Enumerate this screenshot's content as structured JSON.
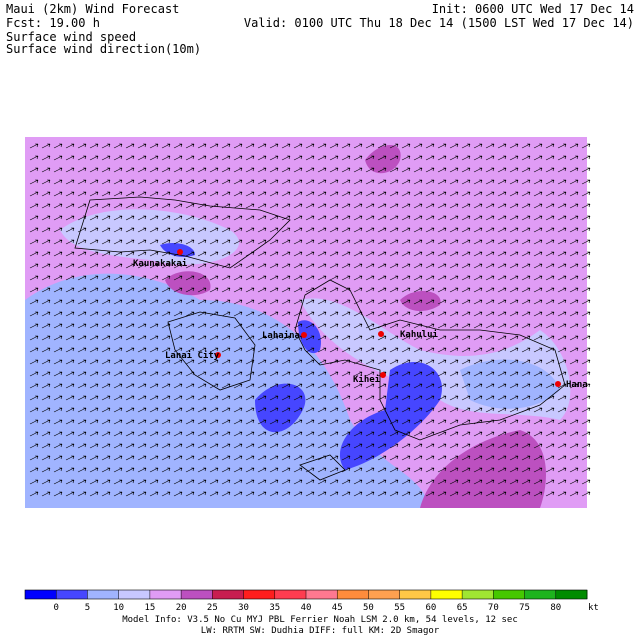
{
  "header": {
    "title": "Maui (2km) Wind Forecast",
    "fcst": "Fcst:   19.00 h",
    "line3": "Surface wind speed",
    "line4": "Surface wind direction(10m)",
    "init": "Init: 0600 UTC Wed 17 Dec 14",
    "valid": "Valid: 0100 UTC Thu 18 Dec 14 (1500 LST Wed 17 Dec 14)"
  },
  "places": [
    "Kaunakakai",
    "Lanai City",
    "Lahaina",
    "Kahului",
    "Kihei",
    "Hana"
  ],
  "colorbar": {
    "colors": [
      "#0000ff",
      "#4646ff",
      "#a0b4ff",
      "#c8c8ff",
      "#e09cf5",
      "#bc50c0",
      "#c81e50",
      "#ff1e1e",
      "#ff3c50",
      "#ff7890",
      "#ff8c3c",
      "#ffa050",
      "#ffc846",
      "#ffff00",
      "#a0e632",
      "#46c800",
      "#1eb41e",
      "#008c00"
    ],
    "ticks": [
      0,
      5,
      10,
      15,
      20,
      25,
      30,
      35,
      40,
      45,
      50,
      55,
      60,
      65,
      70,
      75,
      80
    ],
    "unit": "kt"
  },
  "footer": {
    "line1": "Model Info: V3.5     No Cu    MYJ PBL   Ferrier      Noah LSM   2.0 km,  54 levels,   12 sec",
    "line2": "LW: RRTM  SW: Dudhia   DIFF: full    KM: 2D Smagor"
  }
}
